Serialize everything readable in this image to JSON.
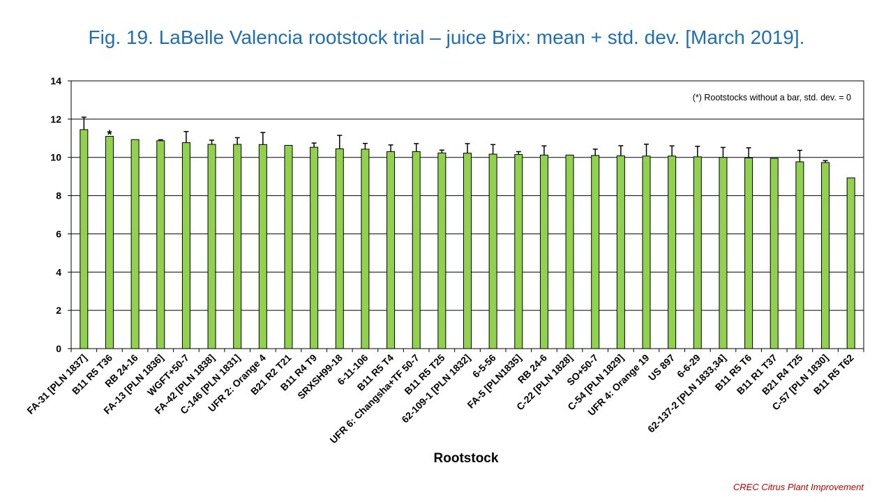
{
  "title": "Fig. 19. LaBelle Valencia rootstock trial – juice Brix: mean + std. dev. [March 2019].",
  "footer": "CREC Citrus Plant Improvement",
  "colors": {
    "bar_fill": "#92d050",
    "bar_stroke": "#000000",
    "grid": "#000000",
    "title": "#1f6fb5",
    "footer": "#c00000"
  },
  "chart_data": {
    "type": "bar",
    "title": "Fig. 19. LaBelle Valencia rootstock trial – juice Brix: mean + std. dev. [March 2019].",
    "xlabel": "Rootstock",
    "ylabel": "",
    "ylim": [
      0,
      14
    ],
    "yticks": [
      "0",
      "2",
      "4",
      "6",
      "8",
      "10",
      "12",
      "14"
    ],
    "grid": true,
    "legend": "none",
    "annotation": "(*) Rootstocks without  a bar, std. dev. = 0",
    "categories": [
      "FA-31 [PLN 1837]",
      "B11 R5 T36",
      "RB 24-16",
      "FA-13 [PLN 1836]",
      "WGFT+50-7",
      "FA-42 [PLN 1838]",
      "C-146 [PLN 1831]",
      "UFR 2: Orange 4",
      "B21 R2 T21",
      "B11 R4 T9",
      "SRXSH99-18",
      "6-11-106",
      "B11 R5 T4",
      "UFR 6: Changsha+TF 50-7",
      "B11 R5 T25",
      "62-109-1 [PLN 1832]",
      "6-5-56",
      "FA-5 [PLN1835]",
      "RB 24-6",
      "C-22 [PLN 1828]",
      "SO+50-7",
      "C-54 [PLN 1829]",
      "UFR 4: Orange 19",
      "US 897",
      "6-6-29",
      "62-137-2 [PLN 1833,34]",
      "B11 R5 T6",
      "B11 R1 T37",
      "B21 R4 T25",
      "C-57 [PLN 1830]",
      "B11 R5 T62"
    ],
    "values": [
      11.45,
      11.1,
      10.93,
      10.87,
      10.77,
      10.68,
      10.68,
      10.67,
      10.63,
      10.53,
      10.45,
      10.43,
      10.3,
      10.3,
      10.23,
      10.22,
      10.17,
      10.15,
      10.12,
      10.12,
      10.1,
      10.08,
      10.07,
      10.07,
      10.03,
      10.0,
      9.97,
      9.95,
      9.77,
      9.73,
      8.93
    ],
    "std_dev": [
      0.65,
      0,
      0,
      0.05,
      0.58,
      0.22,
      0.35,
      0.63,
      0,
      0.22,
      0.7,
      0.3,
      0.35,
      0.42,
      0.15,
      0.5,
      0.5,
      0.15,
      0.48,
      0,
      0.33,
      0.53,
      0.62,
      0.53,
      0.55,
      0.52,
      0.53,
      0,
      0.6,
      0.1,
      0
    ],
    "markers": [
      {
        "index": 1,
        "text": "*"
      }
    ]
  }
}
